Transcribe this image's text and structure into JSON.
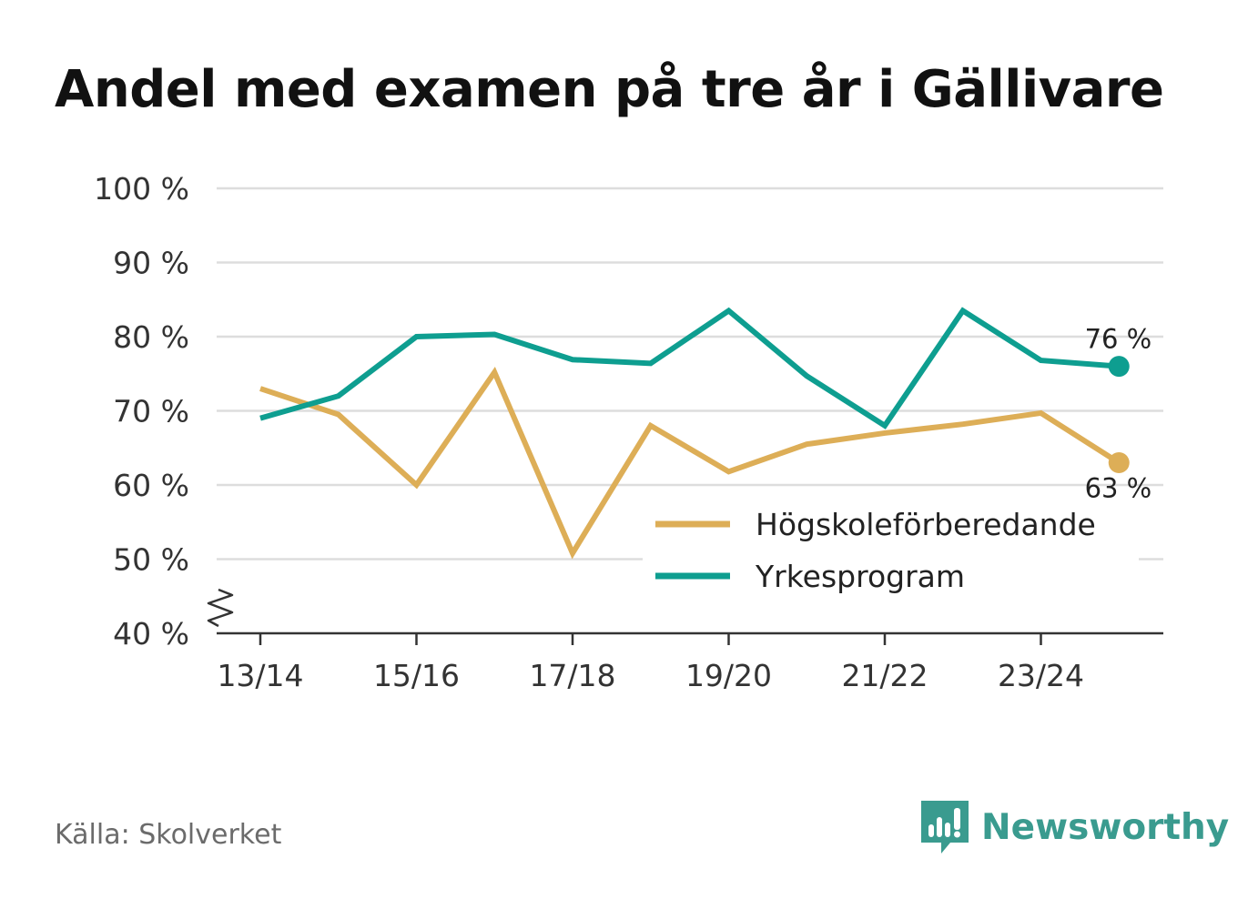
{
  "title": "Andel med examen på tre år i Gällivare",
  "source": "Källa: Skolverket",
  "brand": {
    "name": "Newsworthy",
    "icon": "newsworthy-logo-icon"
  },
  "chart_data": {
    "type": "line",
    "title": "Andel med examen på tre år i Gällivare",
    "xlabel": "",
    "ylabel": "",
    "x": [
      "13/14",
      "14/15",
      "15/16",
      "16/17",
      "17/18",
      "18/19",
      "19/20",
      "20/21",
      "21/22",
      "22/23",
      "23/24",
      "24/25"
    ],
    "x_tick_labels": [
      "13/14",
      "15/16",
      "17/18",
      "19/20",
      "21/22",
      "23/24"
    ],
    "x_tick_indices": [
      0,
      2,
      4,
      6,
      8,
      10
    ],
    "ylim": [
      40,
      100
    ],
    "y_ticks": [
      40,
      50,
      60,
      70,
      80,
      90,
      100
    ],
    "y_tick_labels": [
      "40 %",
      "50 %",
      "60 %",
      "70 %",
      "80 %",
      "90 %",
      "100 %"
    ],
    "y_axis_break": true,
    "grid": true,
    "legend_position": "bottom-right",
    "series": [
      {
        "name": "Högskoleförberedande",
        "color": "#ddae57",
        "values": [
          73,
          69.5,
          60,
          75.2,
          50.8,
          68,
          61.8,
          65.5,
          67,
          68.2,
          69.7,
          63
        ],
        "end_label": "63 %"
      },
      {
        "name": "Yrkesprogram",
        "color": "#0e9e90",
        "values": [
          69,
          72,
          80,
          80.3,
          76.9,
          76.4,
          83.5,
          74.7,
          68,
          83.5,
          76.8,
          76
        ],
        "end_label": "76 %"
      }
    ]
  }
}
